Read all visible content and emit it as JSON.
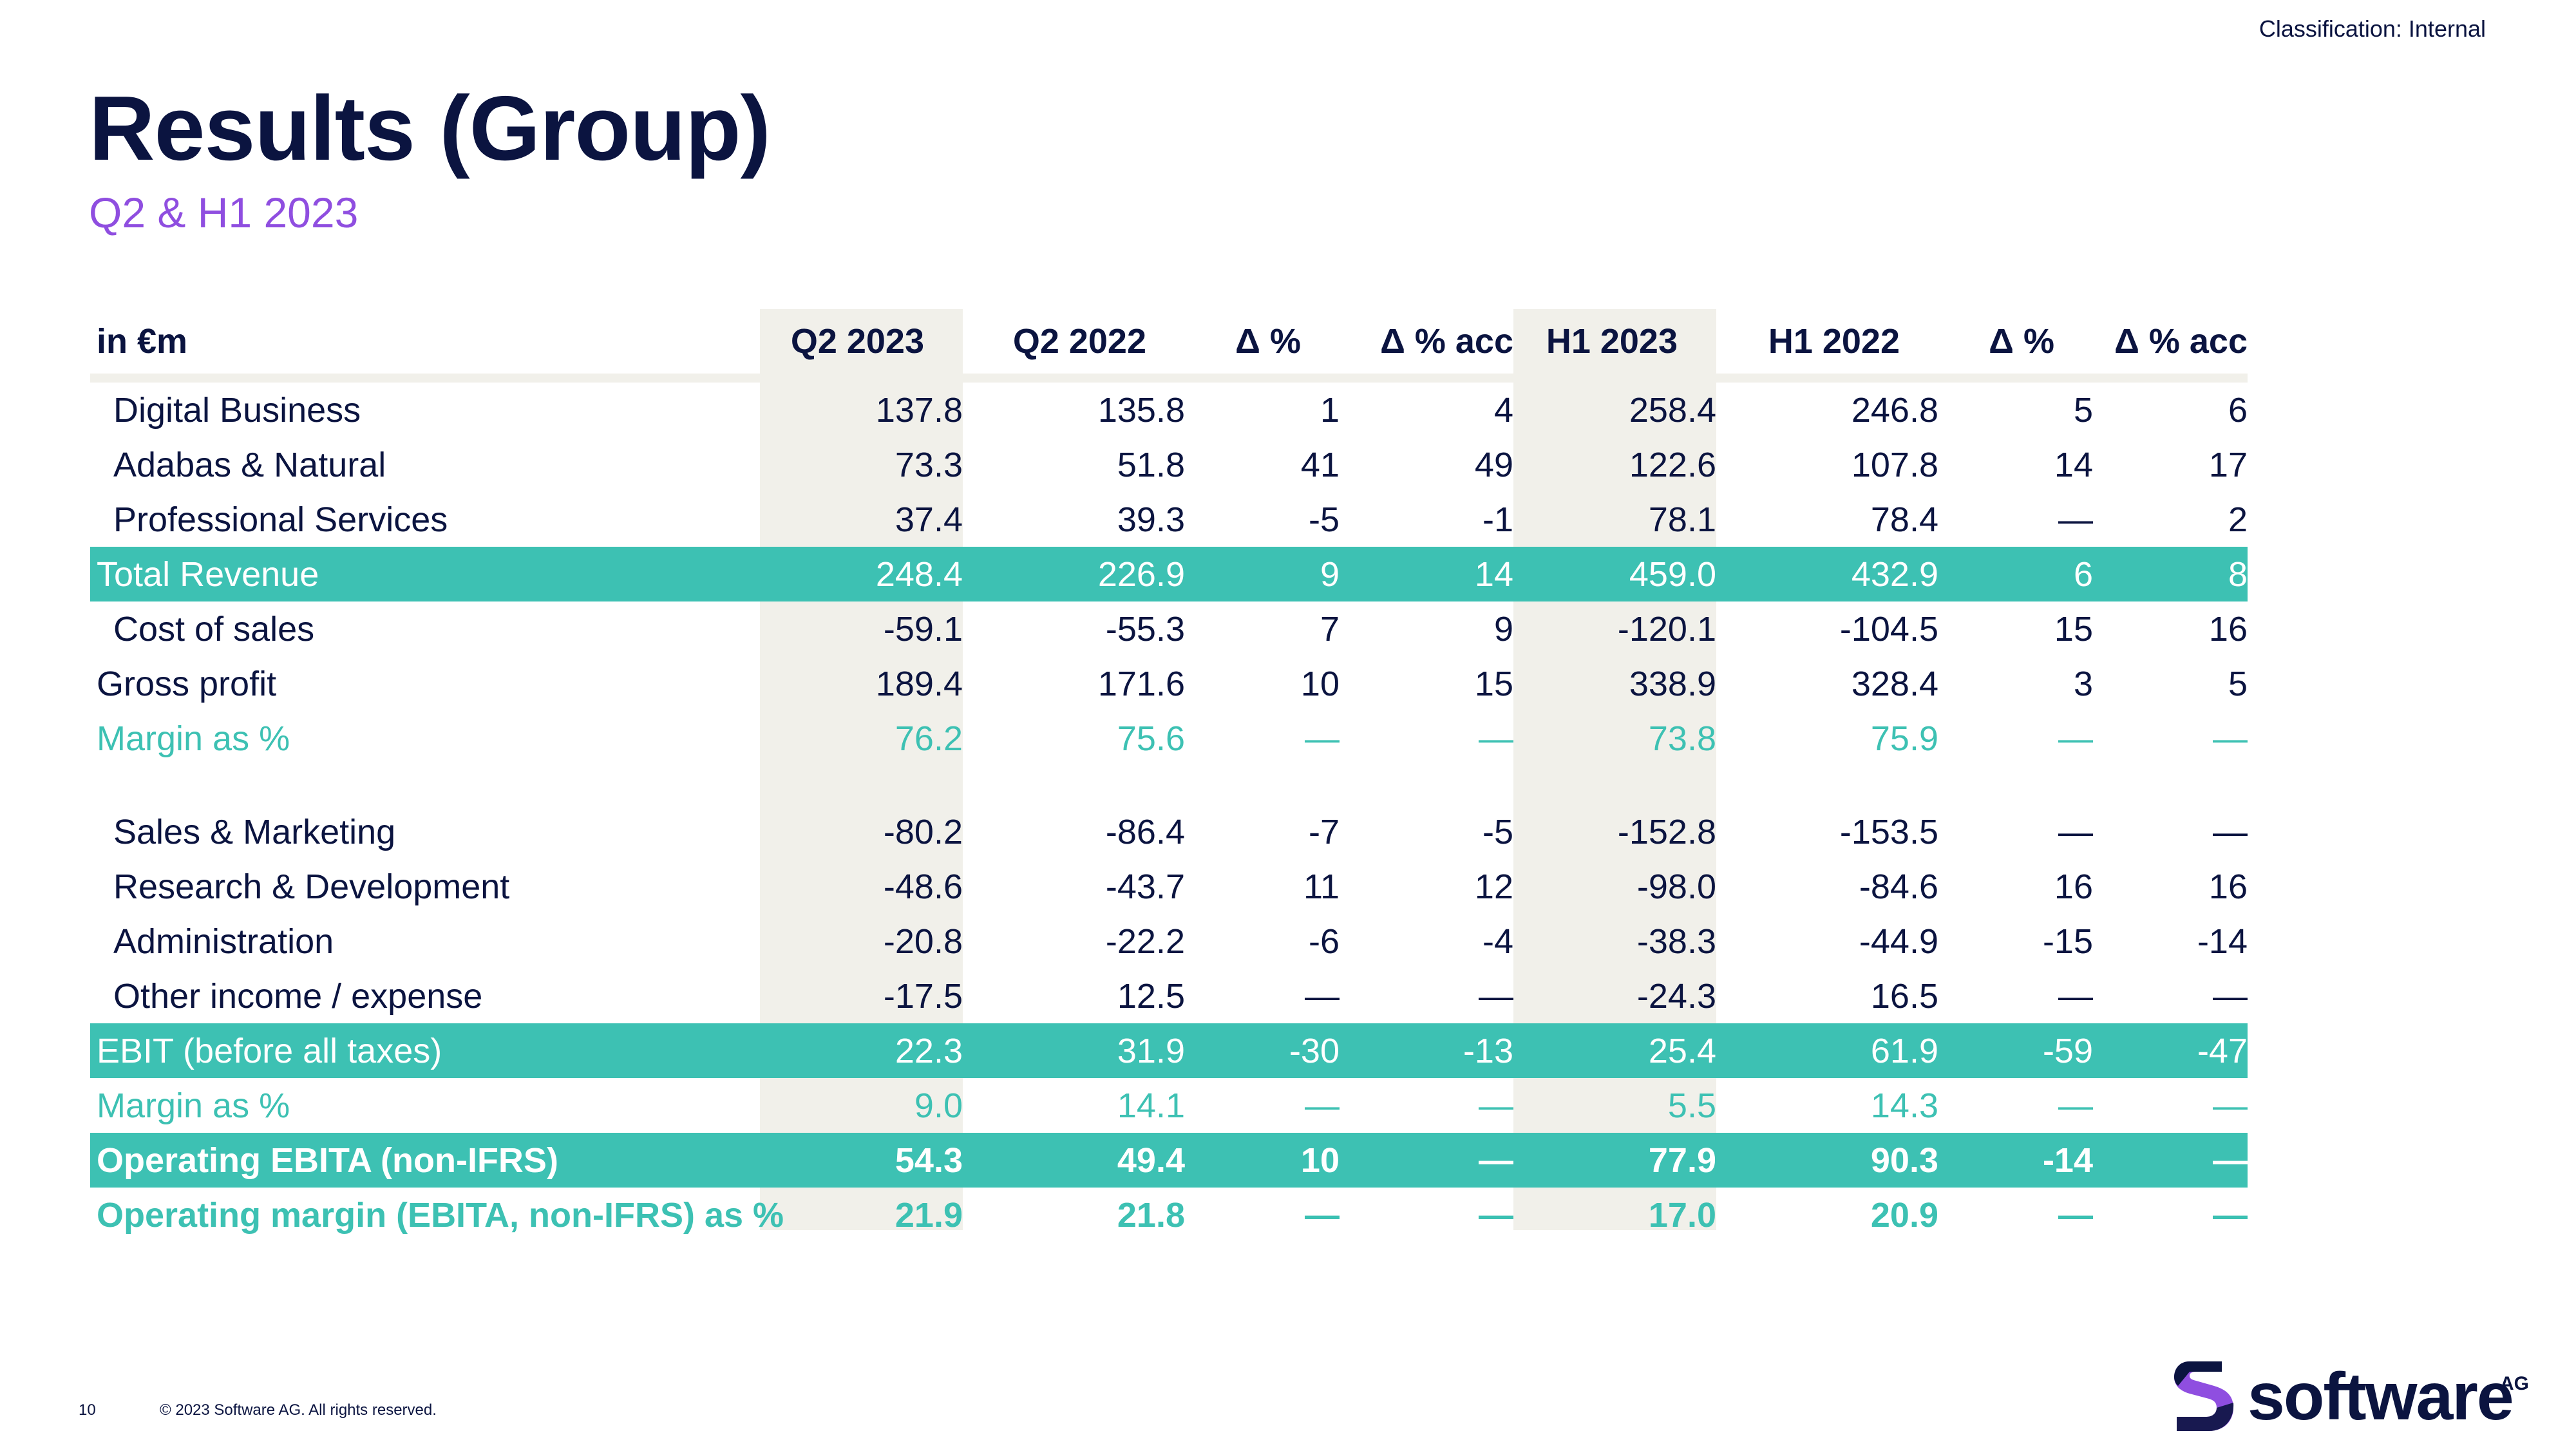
{
  "classification": "Classification: Internal",
  "title": "Results (Group)",
  "subtitle": "Q2 & H1 2023",
  "table": {
    "headers": [
      "in €m",
      "Q2 2023",
      "Q2 2022",
      "Δ %",
      "Δ % acc",
      "H1 2023",
      "H1 2022",
      "Δ %",
      "Δ % acc"
    ],
    "rows": [
      {
        "label": "Digital Business",
        "values": [
          "137.8",
          "135.8",
          "1",
          "4",
          "258.4",
          "246.8",
          "5",
          "6"
        ]
      },
      {
        "label": "Adabas & Natural",
        "values": [
          "73.3",
          "51.8",
          "41",
          "49",
          "122.6",
          "107.8",
          "14",
          "17"
        ]
      },
      {
        "label": "Professional Services",
        "values": [
          "37.4",
          "39.3",
          "-5",
          "-1",
          "78.1",
          "78.4",
          "—",
          "2"
        ]
      },
      {
        "label": "Total Revenue",
        "values": [
          "248.4",
          "226.9",
          "9",
          "14",
          "459.0",
          "432.9",
          "6",
          "8"
        ]
      },
      {
        "label": "Cost of sales",
        "values": [
          "-59.1",
          "-55.3",
          "7",
          "9",
          "-120.1",
          "-104.5",
          "15",
          "16"
        ]
      },
      {
        "label": "Gross profit",
        "values": [
          "189.4",
          "171.6",
          "10",
          "15",
          "338.9",
          "328.4",
          "3",
          "5"
        ]
      },
      {
        "label": "Margin as %",
        "values": [
          "76.2",
          "75.6",
          "—",
          "—",
          "73.8",
          "75.9",
          "—",
          "—"
        ]
      },
      {
        "label": "Sales & Marketing",
        "values": [
          "-80.2",
          "-86.4",
          "-7",
          "-5",
          "-152.8",
          "-153.5",
          "—",
          "—"
        ]
      },
      {
        "label": "Research & Development",
        "values": [
          "-48.6",
          "-43.7",
          "11",
          "12",
          "-98.0",
          "-84.6",
          "16",
          "16"
        ]
      },
      {
        "label": "Administration",
        "values": [
          "-20.8",
          "-22.2",
          "-6",
          "-4",
          "-38.3",
          "-44.9",
          "-15",
          "-14"
        ]
      },
      {
        "label": "Other income / expense",
        "values": [
          "-17.5",
          "12.5",
          "—",
          "—",
          "-24.3",
          "16.5",
          "—",
          "—"
        ]
      },
      {
        "label": "EBIT (before all taxes)",
        "values": [
          "22.3",
          "31.9",
          "-30",
          "-13",
          "25.4",
          "61.9",
          "-59",
          "-47"
        ]
      },
      {
        "label": "Margin as %",
        "values": [
          "9.0",
          "14.1",
          "—",
          "—",
          "5.5",
          "14.3",
          "—",
          "—"
        ]
      },
      {
        "label": "Operating EBITA (non-IFRS)",
        "values": [
          "54.3",
          "49.4",
          "10",
          "—",
          "77.9",
          "90.3",
          "-14",
          "—"
        ]
      },
      {
        "label": "Operating margin (EBITA, non-IFRS) as %",
        "values": [
          "21.9",
          "21.8",
          "—",
          "—",
          "17.0",
          "20.9",
          "—",
          "—"
        ]
      }
    ]
  },
  "footer": {
    "page_number": "10",
    "copyright": "© 2023 Software AG. All rights reserved."
  },
  "logo": {
    "text": "software",
    "suffix": "AG"
  },
  "colors": {
    "navy": "#0b1440",
    "teal": "#3dc1b3",
    "purple": "#8f4ee0",
    "highlight": "#f1f0ea"
  }
}
